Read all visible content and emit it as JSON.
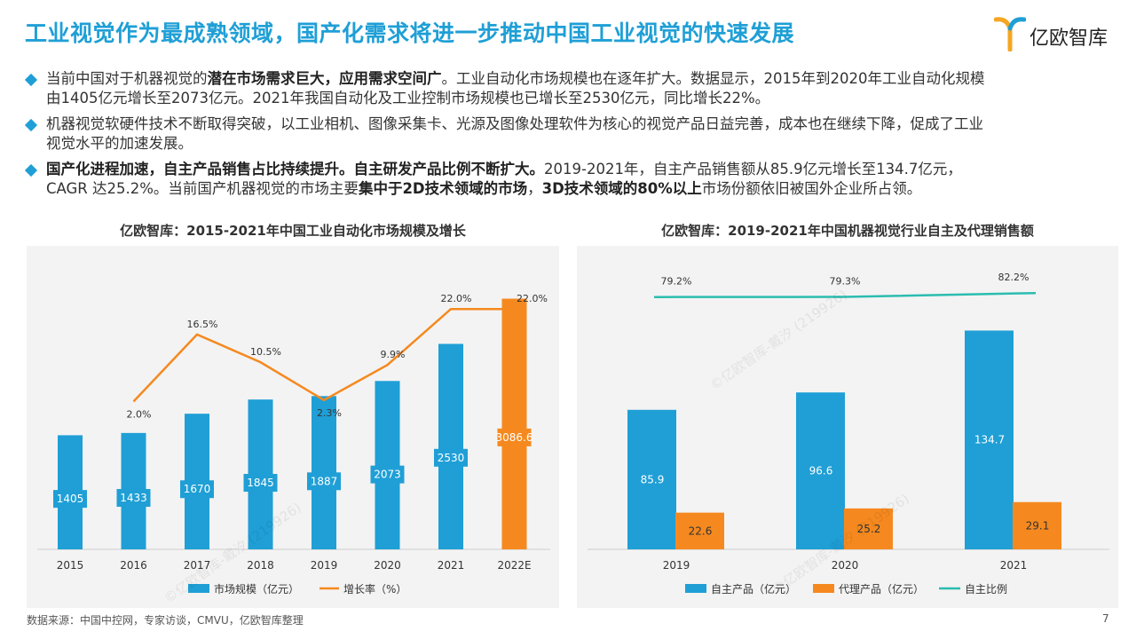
{
  "header": {
    "title": "工业视觉作为最成熟领域，国产化需求将进一步推动中国工业视觉的快速发展",
    "brand": "亿欧智库"
  },
  "bullets": [
    {
      "line1_a": "当前中国对于机器视觉的",
      "line1_b": "潜在市场需求巨大，应用需求空间广",
      "line1_c": "。工业自动化市场规模也在逐年扩大。数据显示，2015年到2020年工业自动化规模",
      "line2": "由1405亿元增长至2073亿元。2021年我国自动化及工业控制市场规模也已增长至2530亿元，同比增长22%。"
    },
    {
      "line1": "机器视觉软硬件技术不断取得突破，以工业相机、图像采集卡、光源及图像处理软件为核心的视觉产品日益完善，成本也在继续下降，促成了工业",
      "line2": "视觉水平的加速发展。"
    },
    {
      "line1_a": "国产化进程加速，自主产品销售占比持续提升。自主研发产品比例不断扩大。",
      "line1_b": "2019-2021年，自主产品销售额从85.9亿元增长至134.7亿元，",
      "line2_a": "CAGR 达25.2%。当前国产机器视觉的市场主要",
      "line2_b": "集中于2D技术领域的市场",
      "line2_c": "，",
      "line2_d": "3D技术领域的80%以上",
      "line2_e": "市场份额依旧被国外企业所占领。"
    }
  ],
  "source": "数据来源：中国中控网，专家访谈，CMVU，亿欧智库整理",
  "page_number": "7",
  "watermark": "©亿欧智库-戴汐 (219926)",
  "colors": {
    "accent_blue": "#1f9fd6",
    "accent_orange": "#f5891f",
    "accent_teal": "#2bbcb0",
    "panel_bg": "#f3f3f3"
  },
  "chart_data": [
    {
      "type": "bar",
      "title": "亿欧智库：2015-2021年中国工业自动化市场规模及增长",
      "categories": [
        "2015",
        "2016",
        "2017",
        "2018",
        "2019",
        "2020",
        "2021",
        "2022E"
      ],
      "series": [
        {
          "name": "市场规模（亿元）",
          "values": [
            1405,
            1433,
            1670,
            1845,
            1887,
            2073,
            2530,
            3086.6
          ],
          "value_labels": [
            "1405",
            "1433",
            "1670",
            "1845",
            "1887",
            "2073",
            "2530",
            "3086.6"
          ]
        },
        {
          "name": "增长率（%）",
          "type": "line",
          "values": [
            null,
            2.0,
            16.5,
            10.5,
            2.3,
            9.9,
            22.0,
            22.0
          ],
          "value_labels": [
            "",
            "2.0%",
            "16.5%",
            "10.5%",
            "2.3%",
            "9.9%",
            "22.0%",
            "22.0%"
          ]
        }
      ],
      "ylim": [
        0,
        3300
      ],
      "y2lim": [
        -30,
        28
      ],
      "legend": "bottom"
    },
    {
      "type": "bar",
      "title": "亿欧智库：2019-2021年中国机器视觉行业自主及代理销售额",
      "categories": [
        "2019",
        "2020",
        "2021"
      ],
      "series": [
        {
          "name": "自主产品（亿元）",
          "values": [
            85.9,
            96.6,
            134.7
          ],
          "value_labels": [
            "85.9",
            "96.6",
            "134.7"
          ]
        },
        {
          "name": "代理产品（亿元）",
          "values": [
            22.6,
            25.2,
            29.1
          ],
          "value_labels": [
            "22.6",
            "25.2",
            "29.1"
          ]
        },
        {
          "name": "自主比例",
          "type": "line",
          "values": [
            79.2,
            79.3,
            82.2
          ],
          "value_labels": [
            "79.2%",
            "79.3%",
            "82.2%"
          ]
        }
      ],
      "ylim": [
        0,
        165
      ],
      "y2lim": [
        0,
        100
      ],
      "legend": "bottom"
    }
  ]
}
